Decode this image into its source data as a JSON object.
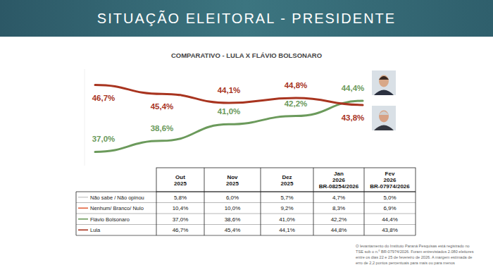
{
  "header": {
    "title": "SITUAÇÃO ELEITORAL - PRESIDENTE"
  },
  "chart_data": {
    "type": "line",
    "title": "COMPARATIVO - LULA X FLÁVIO BOLSONARO",
    "categories": [
      "Out 2025",
      "Nov 2025",
      "Dez 2025",
      "Jan 2026",
      "Fev 2026"
    ],
    "ylim": [
      35,
      49
    ],
    "tick_labels": false,
    "grid": false,
    "data_labels": true,
    "series": [
      {
        "name": "Flávio Bolsonaro",
        "color": "#6b9a5b",
        "values": [
          37.0,
          38.6,
          41.0,
          42.2,
          44.4
        ],
        "value_labels": [
          "37,0%",
          "38,6%",
          "41,0%",
          "42,2%",
          "44,4%"
        ]
      },
      {
        "name": "Lula",
        "color": "#a8341f",
        "values": [
          46.7,
          45.4,
          44.1,
          44.8,
          43.8
        ],
        "value_labels": [
          "46,7%",
          "45,4%",
          "44,1%",
          "44,8%",
          "43,8%"
        ]
      }
    ]
  },
  "table": {
    "registrations": [
      "BR-08254/2026",
      "BR-07974/2026"
    ],
    "rows": [
      {
        "label": "Não sabe / Não opinou",
        "color": "#cfcfcf",
        "values": [
          "5,8%",
          "6,0%",
          "5,7%",
          "4,7%",
          "5,0%"
        ]
      },
      {
        "label": "Nenhum/ Branco/ Nulo",
        "color": "#e2623c",
        "values": [
          "10,4%",
          "10,0%",
          "9,2%",
          "8,3%",
          "6,9%"
        ]
      }
    ]
  },
  "footnote": [
    "O levantamento do Instituto Paraná Pesquisas está registrado no",
    "TSE sob o n.º BR-07974/2026. Foram entrevistados 2.080 eleitores",
    "entre os dias 22 e 25 de fevereiro de 2026. A margem estimada de",
    "erro de 2,2 pontos percentuais para mais ou para menos"
  ]
}
